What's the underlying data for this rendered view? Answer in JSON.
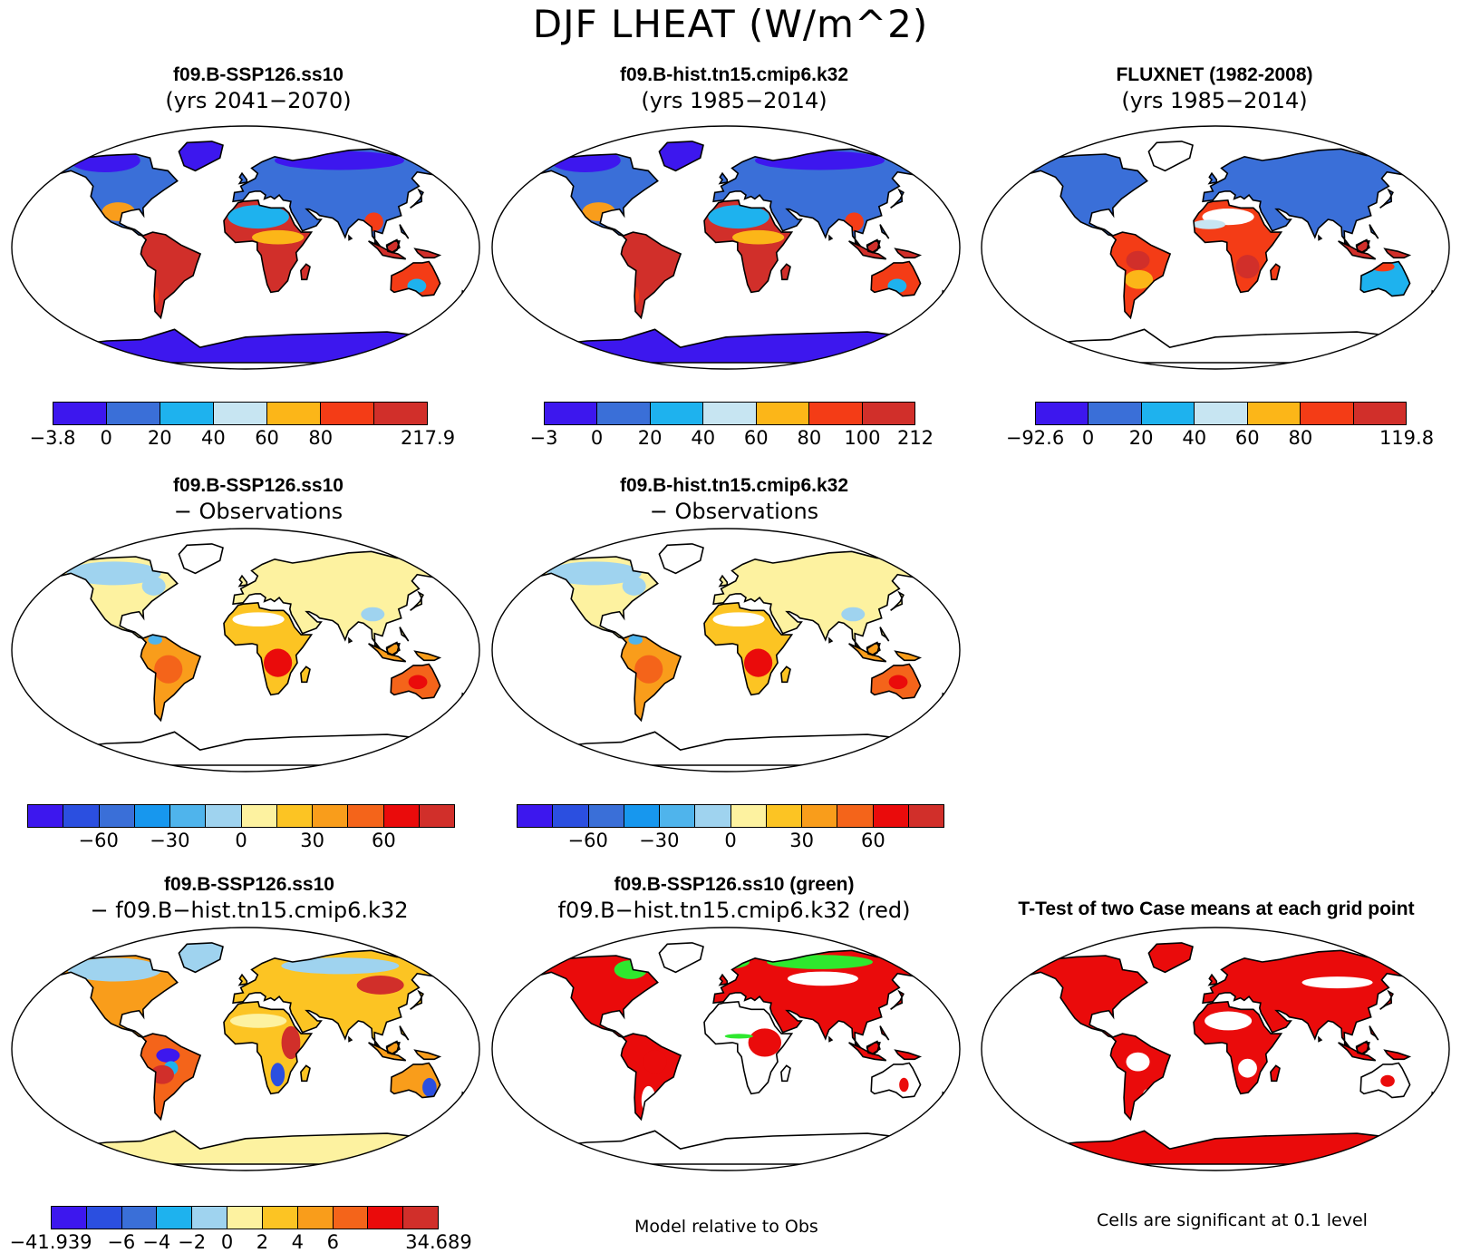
{
  "title": "DJF LHEAT (W/m^2)",
  "panels": [
    {
      "line1": "f09.B-SSP126.ss10",
      "line2": "(yrs 2041−2070)",
      "scheme": "abs_case",
      "antarctic": "blue"
    },
    {
      "line1": "f09.B-hist.tn15.cmip6.k32",
      "line2": "(yrs 1985−2014)",
      "scheme": "abs_case",
      "antarctic": "blue"
    },
    {
      "line1": "FLUXNET (1982-2008)",
      "line2": "(yrs 1985−2014)",
      "scheme": "abs_obs",
      "antarctic": "none"
    },
    {
      "line1": "f09.B-SSP126.ss10",
      "line2": "− Observations",
      "scheme": "diff_obs",
      "antarctic": "none"
    },
    {
      "line1": "f09.B-hist.tn15.cmip6.k32",
      "line2": "− Observations",
      "scheme": "diff_obs",
      "antarctic": "none"
    },
    {
      "line1": "f09.B-SSP126.ss10",
      "line2": "− f09.B−hist.tn15.cmip6.k32",
      "scheme": "diff_case",
      "antarctic": "yellow"
    },
    {
      "line1": "f09.B-SSP126.ss10 (green)",
      "line2": "f09.B−hist.tn15.cmip6.k32 (red)",
      "scheme": "rel",
      "antarctic": "none"
    },
    {
      "line1": "T-Test of two Case means at each grid point",
      "line2": "",
      "scheme": "ttest",
      "antarctic": "red"
    }
  ],
  "colorbars": [
    {
      "colors": [
        "#3d17ee",
        "#3a6fd8",
        "#1eb2ee",
        "#c7e5f2",
        "#fcb618",
        "#f43c16",
        "#d12f2a"
      ],
      "labels": [
        "−3.8",
        "0",
        "20",
        "40",
        "60",
        "80",
        "",
        "217.9"
      ]
    },
    {
      "colors": [
        "#3d17ee",
        "#3a6fd8",
        "#1eb2ee",
        "#c7e5f2",
        "#fcb618",
        "#f43c16",
        "#d12f2a"
      ],
      "labels": [
        "−3",
        "0",
        "20",
        "40",
        "60",
        "80",
        "100",
        "212"
      ]
    },
    {
      "colors": [
        "#3d17ee",
        "#3a6fd8",
        "#1eb2ee",
        "#c7e5f2",
        "#fcb618",
        "#f43c16",
        "#d12f2a"
      ],
      "labels": [
        "−92.6",
        "0",
        "20",
        "40",
        "60",
        "80",
        "",
        "119.8"
      ]
    },
    {
      "colors": [
        "#3d17ee",
        "#2b4fe0",
        "#3a6fd8",
        "#1797ee",
        "#4fb4ec",
        "#9fd3ef",
        "#fdf2a0",
        "#fcc423",
        "#f99d1b",
        "#f4641a",
        "#ea0b0b",
        "#d12f2a"
      ],
      "labels": [
        "",
        "",
        "−60",
        "",
        "−30",
        "",
        "0",
        "",
        "30",
        "",
        "60",
        "",
        ""
      ]
    },
    {
      "colors": [
        "#3d17ee",
        "#2b4fe0",
        "#3a6fd8",
        "#1797ee",
        "#4fb4ec",
        "#9fd3ef",
        "#fdf2a0",
        "#fcc423",
        "#f99d1b",
        "#f4641a",
        "#ea0b0b",
        "#d12f2a"
      ],
      "labels": [
        "",
        "",
        "−60",
        "",
        "−30",
        "",
        "0",
        "",
        "30",
        "",
        "60",
        "",
        ""
      ]
    },
    {
      "colors": [
        "#3d17ee",
        "#2b4fe0",
        "#3a6fd8",
        "#1eb2ee",
        "#9fd3ef",
        "#fdf2a0",
        "#fcc423",
        "#f99d1b",
        "#f4641a",
        "#ea0b0b",
        "#d12f2a"
      ],
      "labels": [
        "−41.939",
        "",
        "−6",
        "−4",
        "−2",
        "0",
        "2",
        "4",
        "6",
        "",
        "",
        "34.689"
      ]
    }
  ],
  "footers": {
    "rel": "Model relative to Obs",
    "ttest": "Cells are significant at 0.1 level"
  }
}
